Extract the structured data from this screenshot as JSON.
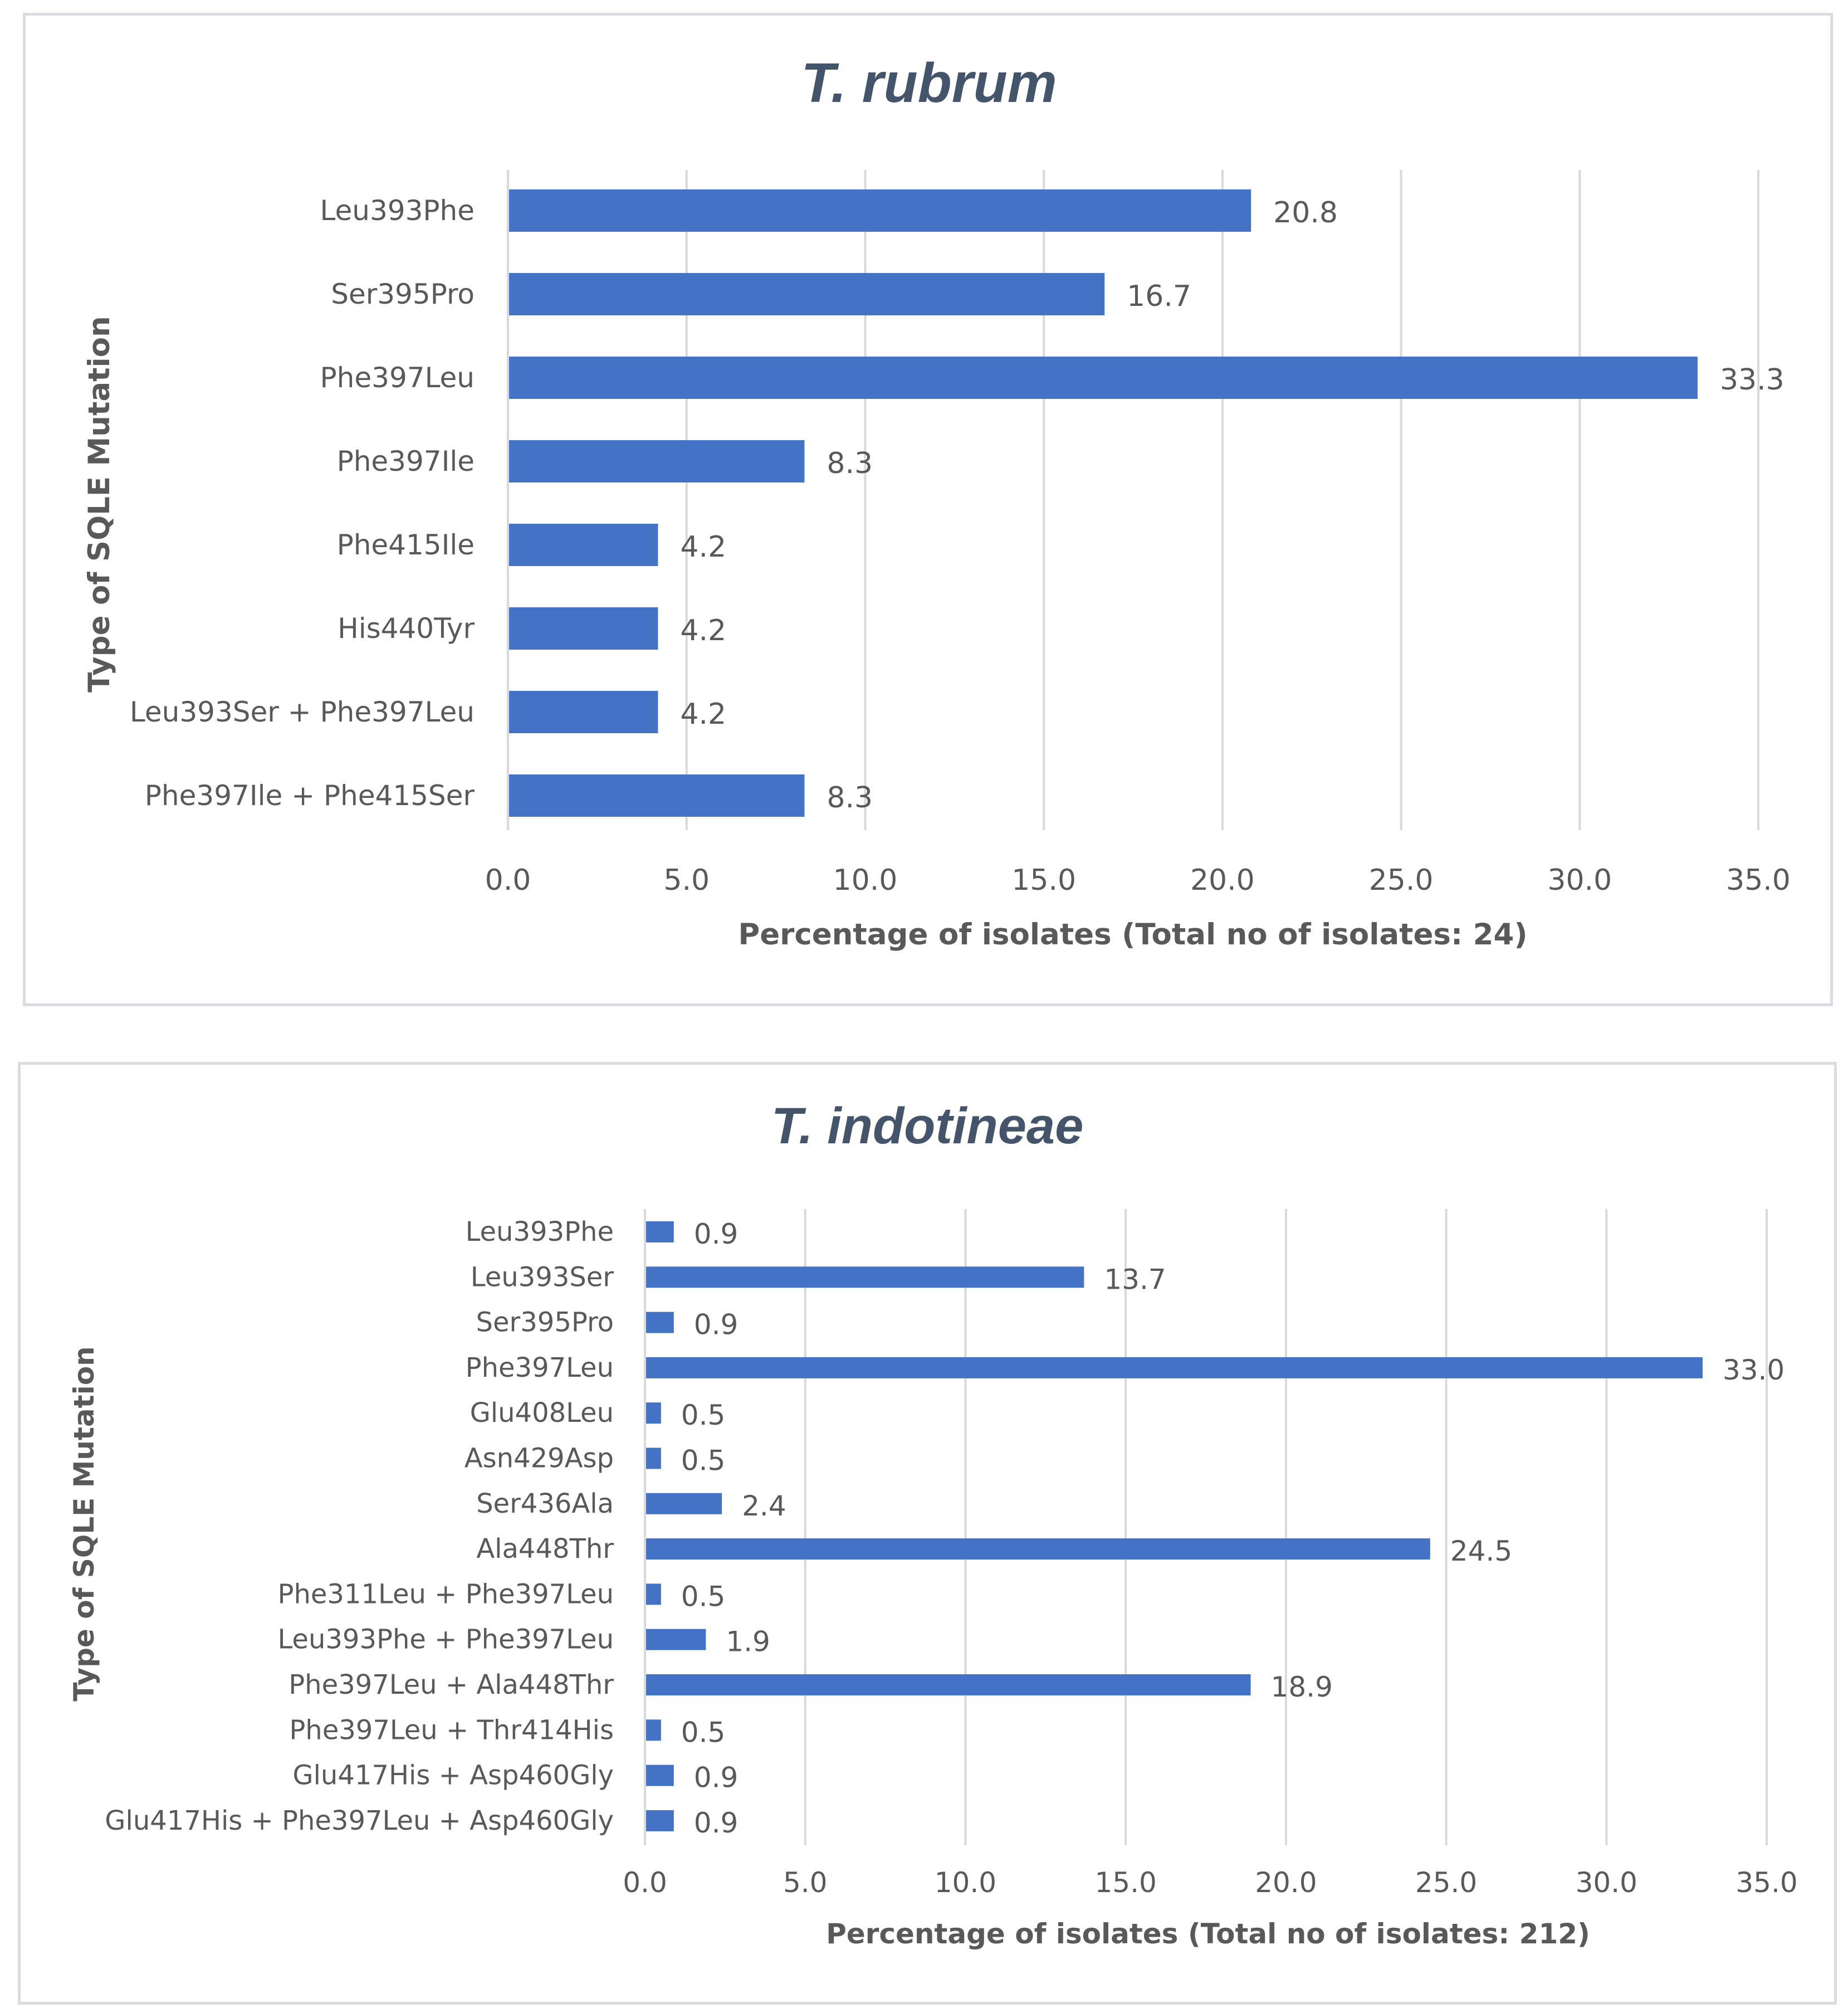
{
  "chart_data": [
    {
      "type": "bar",
      "orientation": "horizontal",
      "title": "T. rubrum",
      "xlabel": "Percentage of isolates (Total no of isolates: 24)",
      "ylabel": "Type of SQLE Mutation",
      "categories": [
        "Leu393Phe",
        "Ser395Pro",
        "Phe397Leu",
        "Phe397Ile",
        "Phe415Ile",
        "His440Tyr",
        "Leu393Ser + Phe397Leu",
        "Phe397Ile + Phe415Ser"
      ],
      "values": [
        20.8,
        16.7,
        33.3,
        8.3,
        4.2,
        4.2,
        4.2,
        8.3
      ],
      "value_labels": [
        "20.8",
        "16.7",
        "33.3",
        "8.3",
        "4.2",
        "4.2",
        "4.2",
        "8.3"
      ],
      "xlim": [
        0,
        35
      ],
      "xticks": [
        "0.0",
        "5.0",
        "10.0",
        "15.0",
        "20.0",
        "25.0",
        "30.0",
        "35.0"
      ],
      "grid": "vertical",
      "color": "#4472c4"
    },
    {
      "type": "bar",
      "orientation": "horizontal",
      "title": "T. indotineae",
      "xlabel": "Percentage of isolates (Total no of isolates: 212)",
      "ylabel": "Type of SQLE Mutation",
      "categories": [
        "Leu393Phe",
        "Leu393Ser",
        "Ser395Pro",
        "Phe397Leu",
        "Glu408Leu",
        "Asn429Asp",
        "Ser436Ala",
        "Ala448Thr",
        "Phe311Leu + Phe397Leu",
        "Leu393Phe + Phe397Leu",
        "Phe397Leu + Ala448Thr",
        "Phe397Leu + Thr414His",
        "Glu417His + Asp460Gly",
        "Glu417His + Phe397Leu + Asp460Gly"
      ],
      "values": [
        0.9,
        13.7,
        0.9,
        33.0,
        0.5,
        0.5,
        2.4,
        24.5,
        0.5,
        1.9,
        18.9,
        0.5,
        0.9,
        0.9
      ],
      "value_labels": [
        "0.9",
        "13.7",
        "0.9",
        "33.0",
        "0.5",
        "0.5",
        "2.4",
        "24.5",
        "0.5",
        "1.9",
        "18.9",
        "0.5",
        "0.9",
        "0.9"
      ],
      "xlim": [
        0,
        35
      ],
      "xticks": [
        "0.0",
        "5.0",
        "10.0",
        "15.0",
        "20.0",
        "25.0",
        "30.0",
        "35.0"
      ],
      "grid": "vertical",
      "color": "#4472c4"
    }
  ]
}
